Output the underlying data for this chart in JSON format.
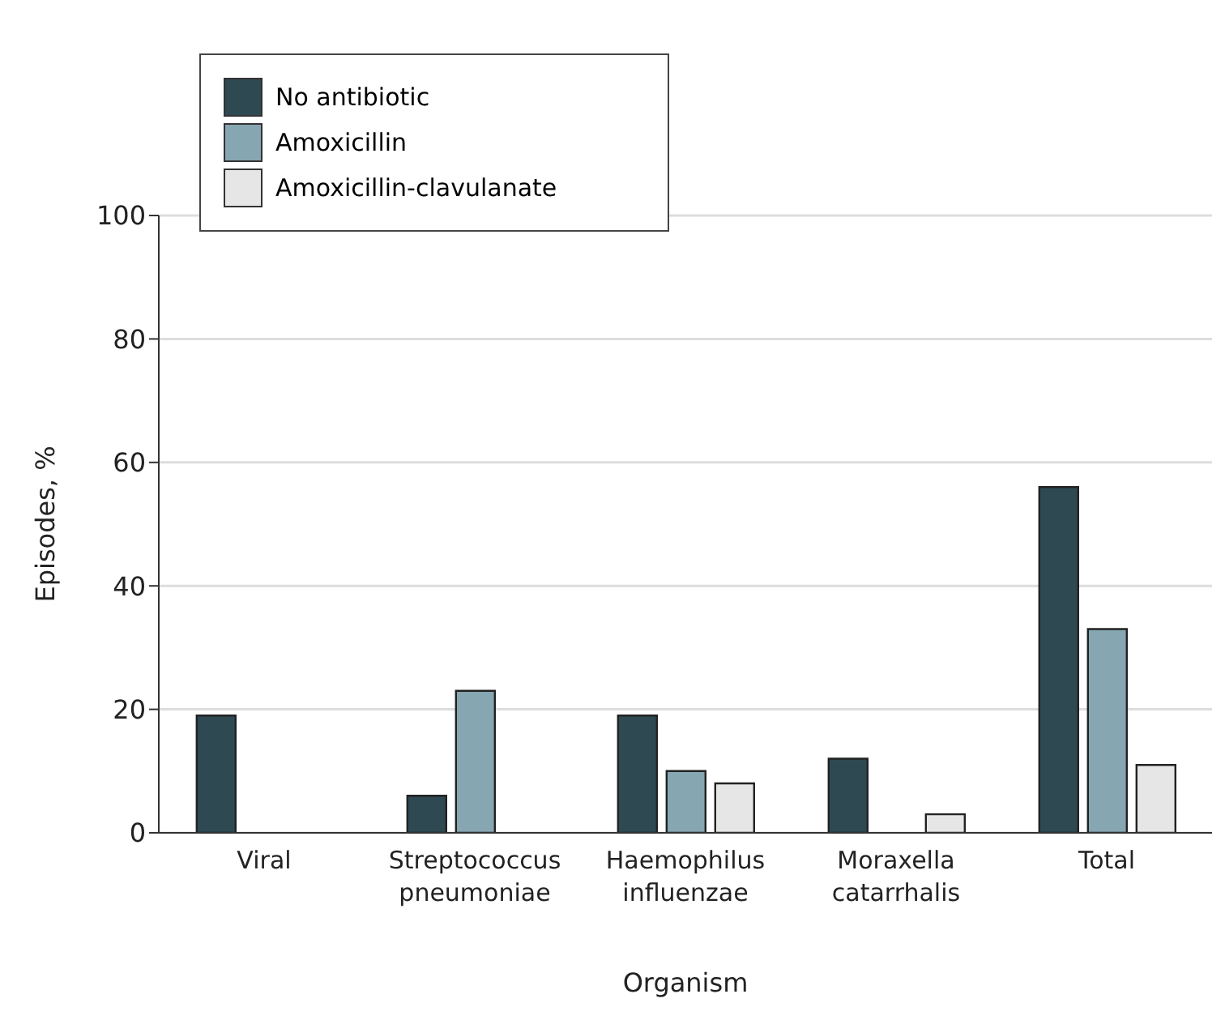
{
  "chart_data": {
    "type": "bar",
    "xlabel": "Organism",
    "ylabel": "Episodes, %",
    "categories": [
      "Viral",
      "Streptococcus pneumoniae",
      "Haemophilus influenzae",
      "Moraxella catarrhalis",
      "Total"
    ],
    "series": [
      {
        "name": "No antibiotic",
        "color": "#2e4952",
        "values": [
          19,
          6,
          19,
          12,
          56
        ]
      },
      {
        "name": "Amoxicillin",
        "color": "#86a6b2",
        "values": [
          0,
          23,
          10,
          0,
          33
        ]
      },
      {
        "name": "Amoxicillin-clavulanate",
        "color": "#e6e6e6",
        "values": [
          0,
          0,
          8,
          3,
          11
        ]
      }
    ],
    "ylim": [
      0,
      100
    ],
    "yticks": [
      0,
      20,
      40,
      60,
      80,
      100
    ],
    "grid": "y",
    "legend": "top left"
  }
}
